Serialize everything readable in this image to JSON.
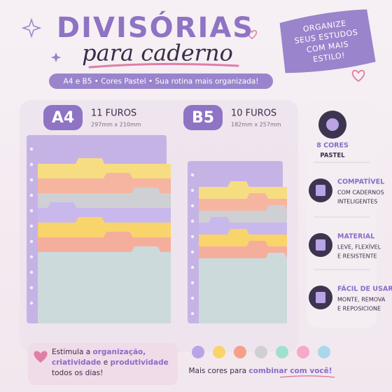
{
  "header": {
    "title": "DIVISÓRIAS",
    "subtitle": "para caderno",
    "tagline": "A4 e B5 • Cores Pastel • Sua rotina mais organizada!"
  },
  "badge": {
    "lines": [
      "ORGANIZE",
      "SEUS ESTUDOS",
      "COM MAIS",
      "ESTILO!"
    ]
  },
  "sizes": [
    {
      "label": "A4",
      "holes": "11 FUROS",
      "dimensions": "297mm x 210mm"
    },
    {
      "label": "B5",
      "holes": "10 FUROS",
      "dimensions": "182mm x 257mm"
    }
  ],
  "features": [
    {
      "title": "8 CORES",
      "text": [
        "PASTEL"
      ]
    },
    {
      "title": "COMPATÍVEL",
      "text": [
        "COM CADERNOS",
        "INTELIGENTES"
      ]
    },
    {
      "title": "MATERIAL",
      "text": [
        "LEVE, FLEXÍVEL",
        "E RESISTENTE"
      ]
    },
    {
      "title": "FÁCIL DE USAR",
      "text": [
        "MONTE, REMOVA",
        "E REPOSICIONE"
      ]
    }
  ],
  "footer": {
    "note": [
      [
        "Estimula a ",
        "organização,"
      ],
      [
        "criatividade",
        " e ",
        "produtividade"
      ],
      [
        "todos os dias!"
      ]
    ],
    "colors_text": [
      "Mais cores para ",
      "combinar com você!"
    ]
  }
}
